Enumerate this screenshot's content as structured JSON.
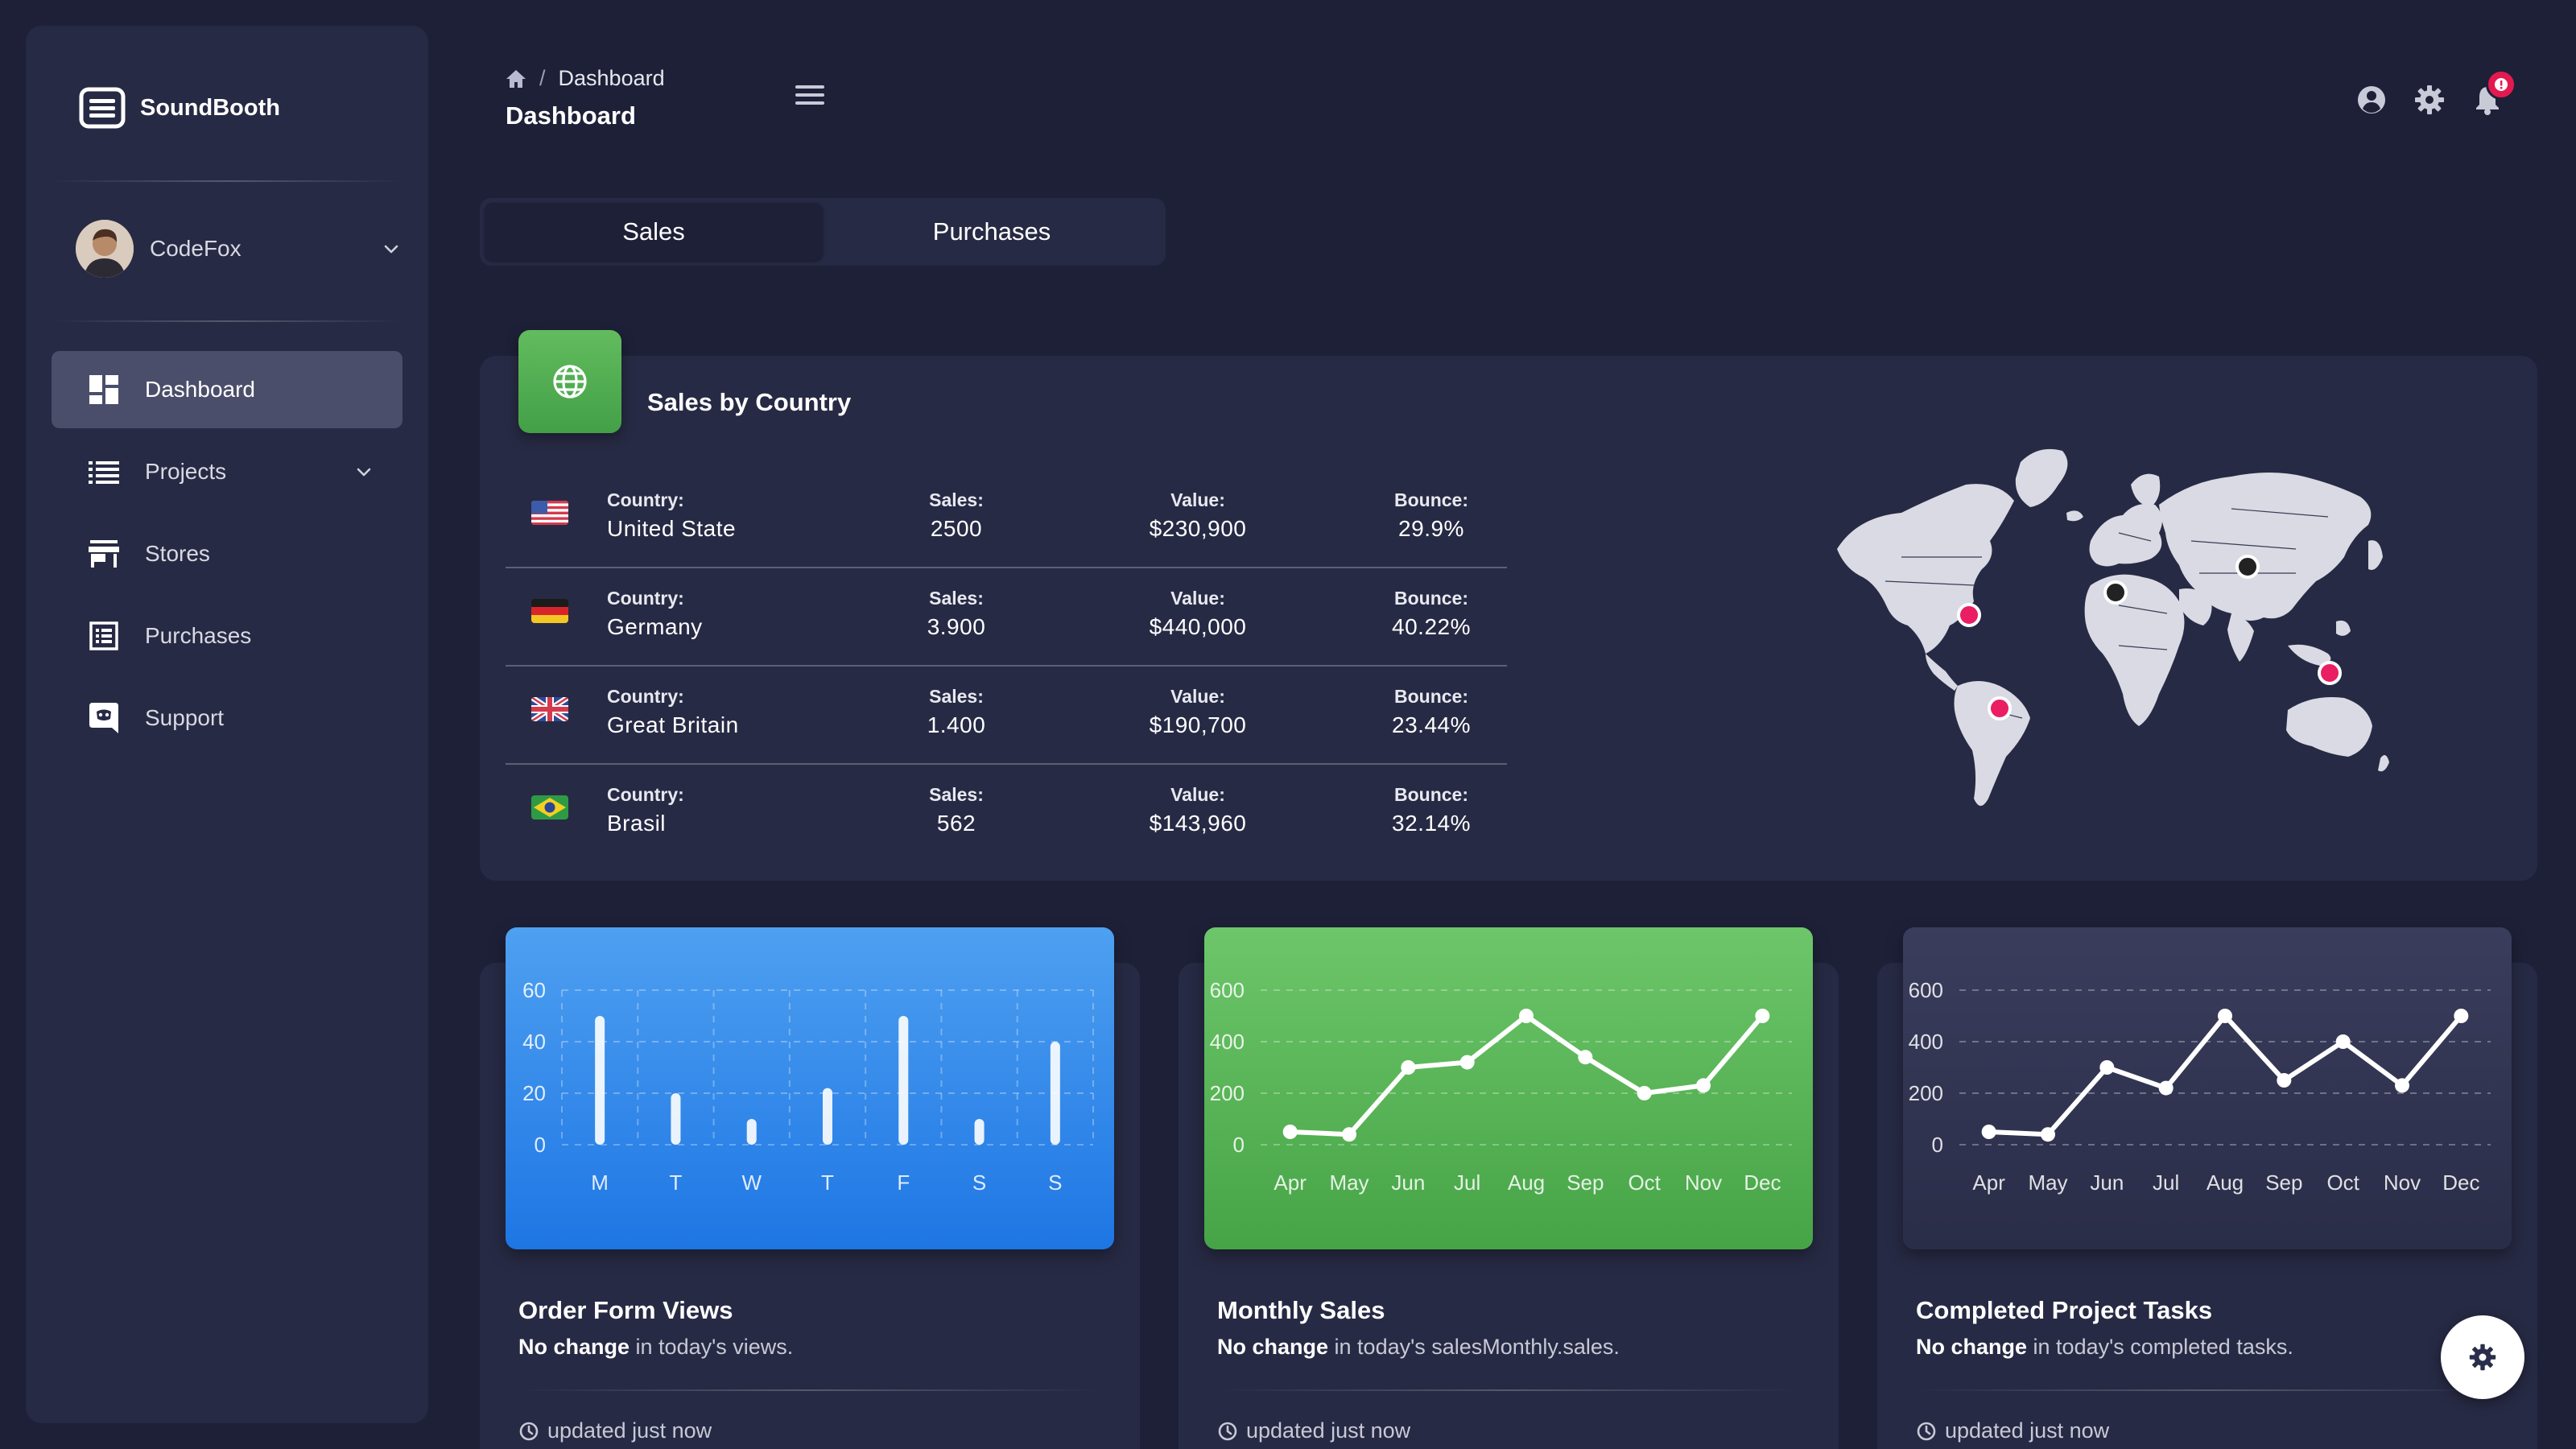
{
  "app": {
    "name": "SoundBooth"
  },
  "user": {
    "name": "CodeFox"
  },
  "sidebar": {
    "items": [
      {
        "label": "Dashboard",
        "icon": "dashboard-icon",
        "active": true
      },
      {
        "label": "Projects",
        "icon": "list-icon",
        "has_submenu": true
      },
      {
        "label": "Stores",
        "icon": "store-icon"
      },
      {
        "label": "Purchases",
        "icon": "receipt-icon"
      },
      {
        "label": "Support",
        "icon": "support-icon"
      }
    ]
  },
  "header": {
    "breadcrumb": {
      "home_icon": "home-icon",
      "current": "Dashboard"
    },
    "title": "Dashboard",
    "notification_badge_icon": "alert-icon"
  },
  "tabs": [
    {
      "label": "Sales",
      "active": true
    },
    {
      "label": "Purchases",
      "active": false
    }
  ],
  "sales_by_country": {
    "title": "Sales by Country",
    "labels": {
      "country": "Country:",
      "sales": "Sales:",
      "value": "Value:",
      "bounce": "Bounce:"
    },
    "rows": [
      {
        "flag": "us-flag",
        "country": "United State",
        "sales": "2500",
        "value": "$230,900",
        "bounce": "29.9%"
      },
      {
        "flag": "de-flag",
        "country": "Germany",
        "sales": "3.900",
        "value": "$440,000",
        "bounce": "40.22%"
      },
      {
        "flag": "gb-flag",
        "country": "Great Britain",
        "sales": "1.400",
        "value": "$190,700",
        "bounce": "23.44%"
      },
      {
        "flag": "br-flag",
        "country": "Brasil",
        "sales": "562",
        "value": "$143,960",
        "bounce": "32.14%"
      }
    ]
  },
  "cards": [
    {
      "title": "Order Form Views",
      "sub_bold": "No change",
      "sub_rest": " in today's views.",
      "footer": "updated just now",
      "color": "#1e76e4"
    },
    {
      "title": "Monthly Sales",
      "sub_bold": "No change",
      "sub_rest": " in today's salesMonthly.sales.",
      "footer": "updated just now",
      "color": "#46a446"
    },
    {
      "title": "Completed Project Tasks",
      "sub_bold": "No change",
      "sub_rest": " in today's completed tasks.",
      "footer": "updated just now",
      "color": "#2a2d48"
    }
  ],
  "chart_data": [
    {
      "type": "bar",
      "categories": [
        "M",
        "T",
        "W",
        "T",
        "F",
        "S",
        "S"
      ],
      "values": [
        50,
        20,
        10,
        22,
        50,
        10,
        40
      ],
      "yticks": [
        0,
        20,
        40,
        60
      ],
      "ylim": [
        0,
        60
      ]
    },
    {
      "type": "line",
      "categories": [
        "Apr",
        "May",
        "Jun",
        "Jul",
        "Aug",
        "Sep",
        "Oct",
        "Nov",
        "Dec"
      ],
      "values": [
        50,
        40,
        300,
        320,
        500,
        340,
        200,
        230,
        500
      ],
      "yticks": [
        0,
        200,
        400,
        600
      ],
      "ylim": [
        0,
        600
      ]
    },
    {
      "type": "line",
      "categories": [
        "Apr",
        "May",
        "Jun",
        "Jul",
        "Aug",
        "Sep",
        "Oct",
        "Nov",
        "Dec"
      ],
      "values": [
        50,
        40,
        300,
        220,
        500,
        250,
        400,
        230,
        500
      ],
      "yticks": [
        0,
        200,
        400,
        600
      ],
      "ylim": [
        0,
        600
      ]
    }
  ],
  "map": {
    "markers": [
      {
        "location": "USA",
        "color": "#e91e63"
      },
      {
        "location": "Brazil",
        "color": "#e91e63"
      },
      {
        "location": "Europe",
        "color": "#222222"
      },
      {
        "location": "Russia",
        "color": "#222222"
      },
      {
        "location": "South-East Asia",
        "color": "#e91e63"
      }
    ]
  }
}
